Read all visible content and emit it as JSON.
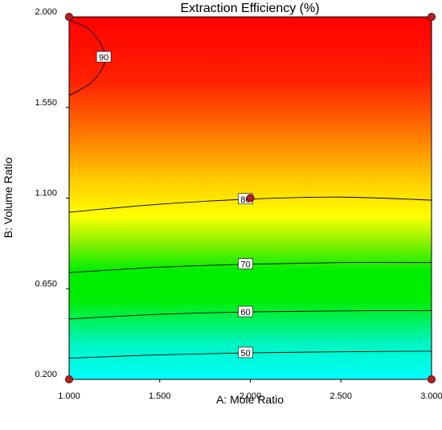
{
  "chart_data": {
    "type": "contour",
    "title": "Extraction Efficiency (%)",
    "xlabel": "A: Mole Ratio",
    "ylabel": "B: Volume Ratio",
    "xlim": [
      1.0,
      3.0
    ],
    "ylim": [
      0.2,
      2.0
    ],
    "x_ticks": [
      "1.000",
      "1.500",
      "2.000",
      "2.500",
      "3.000"
    ],
    "y_ticks": [
      "0.200",
      "0.650",
      "1.100",
      "1.550",
      "2.000"
    ],
    "color_scale": [
      {
        "level": "low",
        "color": "#00ffff"
      },
      {
        "level": "mid",
        "color": "#00ee00"
      },
      {
        "level": "upper",
        "color": "#ffff00"
      },
      {
        "level": "high",
        "color": "#ff0000"
      }
    ],
    "contours": [
      {
        "label": "50",
        "points": [
          [
            1.0,
            0.305
          ],
          [
            1.5,
            0.322
          ],
          [
            2.0,
            0.332
          ],
          [
            2.5,
            0.337
          ],
          [
            3.0,
            0.34
          ]
        ]
      },
      {
        "label": "60",
        "points": [
          [
            1.0,
            0.5
          ],
          [
            1.5,
            0.523
          ],
          [
            2.0,
            0.535
          ],
          [
            2.5,
            0.54
          ],
          [
            3.0,
            0.542
          ]
        ]
      },
      {
        "label": "70",
        "points": [
          [
            1.0,
            0.73
          ],
          [
            1.5,
            0.757
          ],
          [
            2.0,
            0.772
          ],
          [
            2.5,
            0.78
          ],
          [
            3.0,
            0.78
          ]
        ]
      },
      {
        "label": "80",
        "points": [
          [
            1.0,
            1.03
          ],
          [
            1.5,
            1.07
          ],
          [
            2.0,
            1.095
          ],
          [
            2.5,
            1.105
          ],
          [
            3.0,
            1.09
          ]
        ]
      },
      {
        "label": "90",
        "points": [
          [
            1.0,
            1.985
          ],
          [
            1.12,
            1.93
          ],
          [
            1.2,
            1.8
          ],
          [
            1.13,
            1.68
          ],
          [
            1.0,
            1.61
          ]
        ]
      }
    ],
    "design_points": [
      {
        "x": 1.0,
        "y": 2.0
      },
      {
        "x": 3.0,
        "y": 2.0
      },
      {
        "x": 2.0,
        "y": 1.1
      },
      {
        "x": 1.0,
        "y": 0.2
      },
      {
        "x": 3.0,
        "y": 0.2
      }
    ]
  }
}
